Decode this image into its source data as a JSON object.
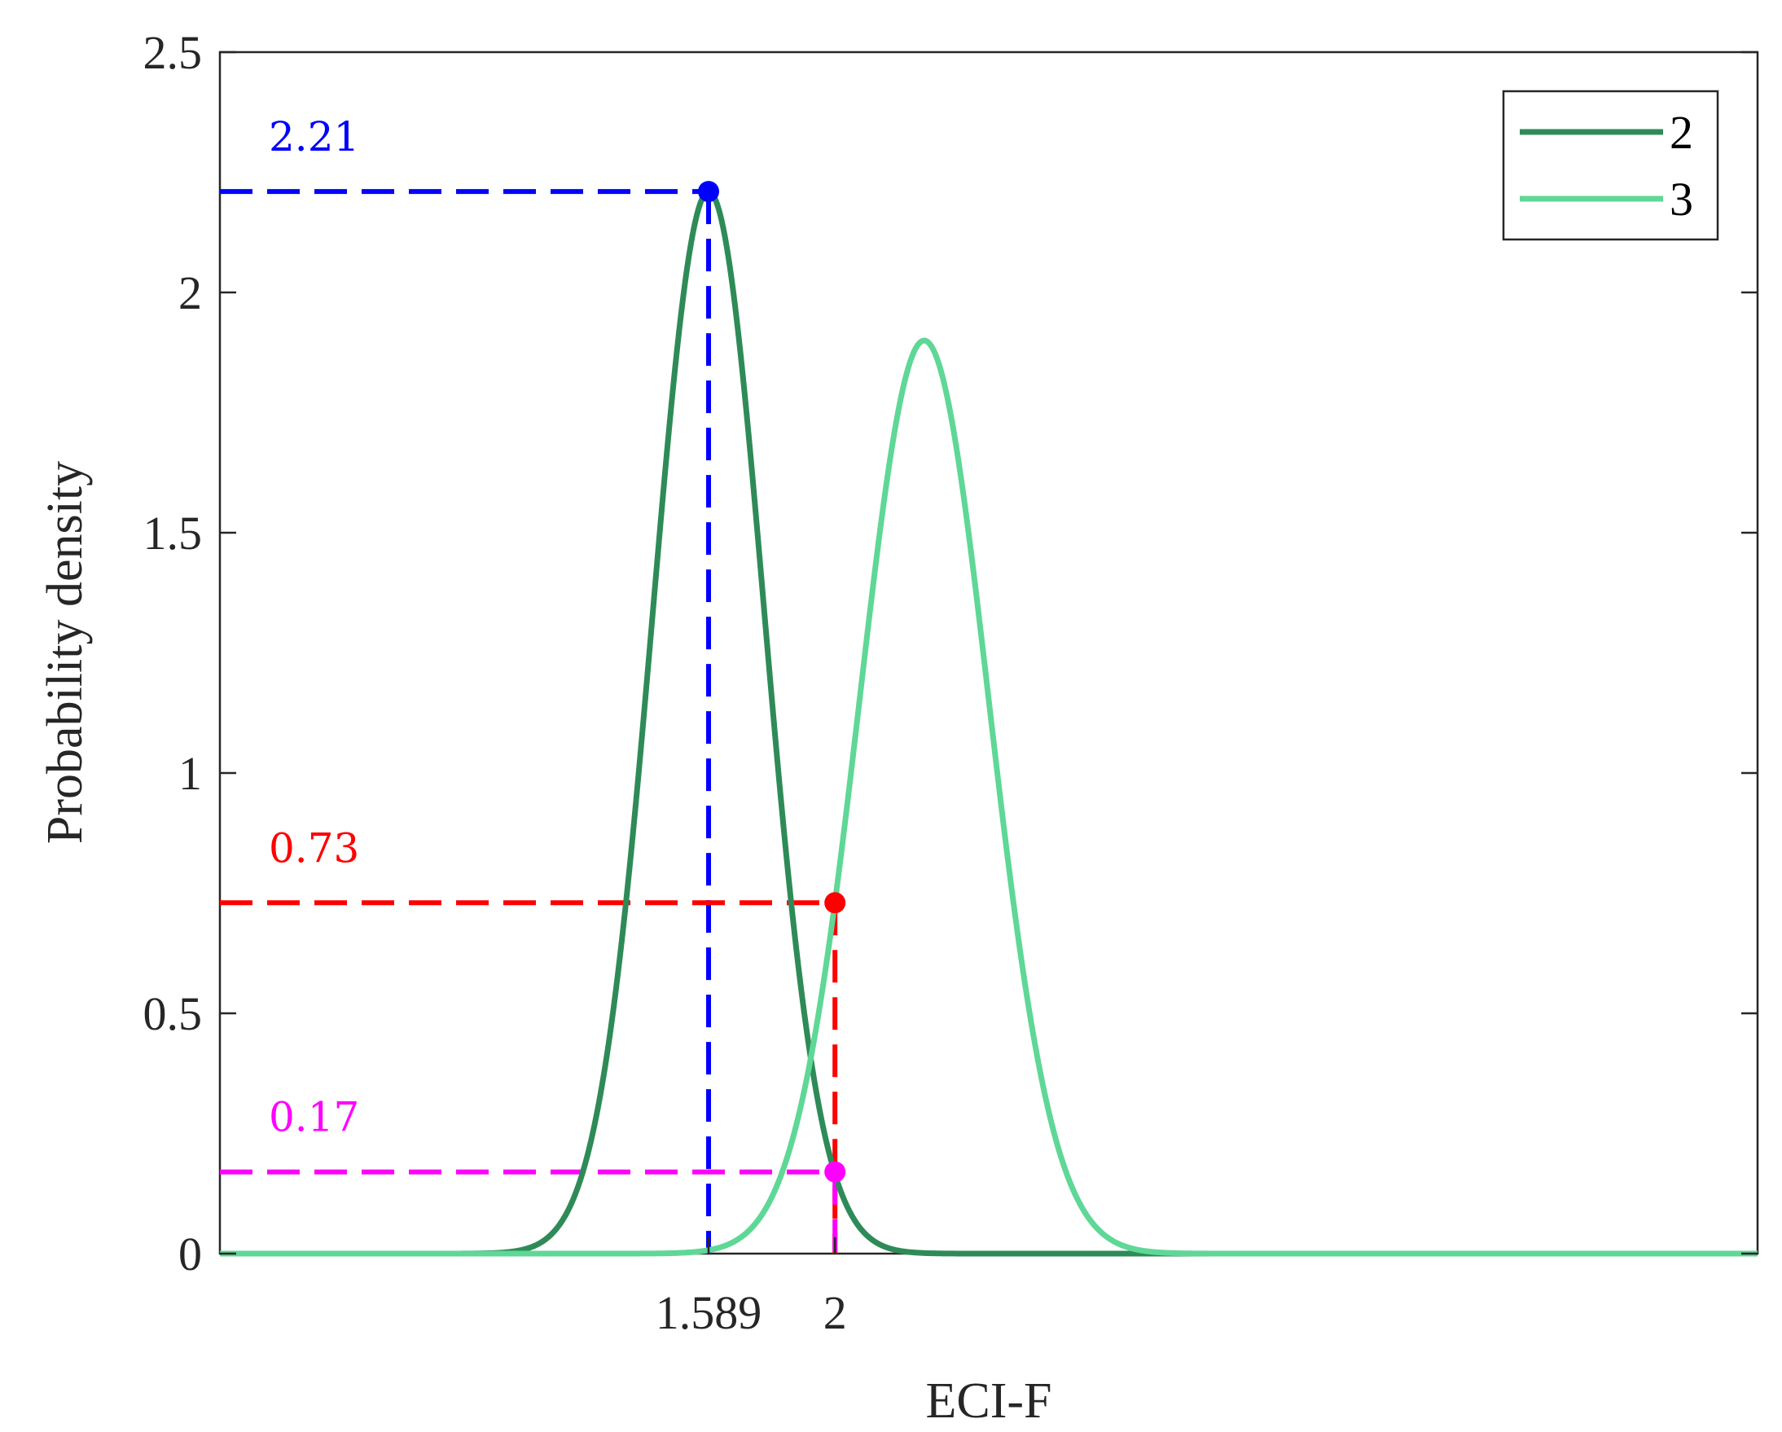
{
  "chart_data": {
    "type": "line",
    "xlabel": "ECI-F",
    "ylabel": "Probability density",
    "xlim": [
      0,
      5
    ],
    "ylim": [
      0,
      2.5
    ],
    "xticks": [
      1.589,
      2
    ],
    "xtick_labels": [
      "1.589",
      "2"
    ],
    "yticks": [
      0,
      0.5,
      1,
      1.5,
      2,
      2.5
    ],
    "ytick_labels": [
      "0",
      "0.5",
      "1",
      "1.5",
      "2",
      "2.5"
    ],
    "grid": false,
    "legend_position": "top-right",
    "series": [
      {
        "name": "2",
        "distribution": "normal",
        "mean": 1.589,
        "peak_density": 2.21,
        "color": "#2E8B57"
      },
      {
        "name": "3",
        "distribution": "normal",
        "mean": 2.29,
        "peak_density": 1.9,
        "color": "#5FD796"
      }
    ],
    "markers": [
      {
        "x": 1.589,
        "y": 2.21,
        "label": "2.21",
        "color": "#0000FF"
      },
      {
        "x": 2,
        "y": 0.73,
        "label": "0.73",
        "color": "#FF0000"
      },
      {
        "x": 2,
        "y": 0.17,
        "label": "0.17",
        "color": "#FF00FF"
      }
    ]
  }
}
